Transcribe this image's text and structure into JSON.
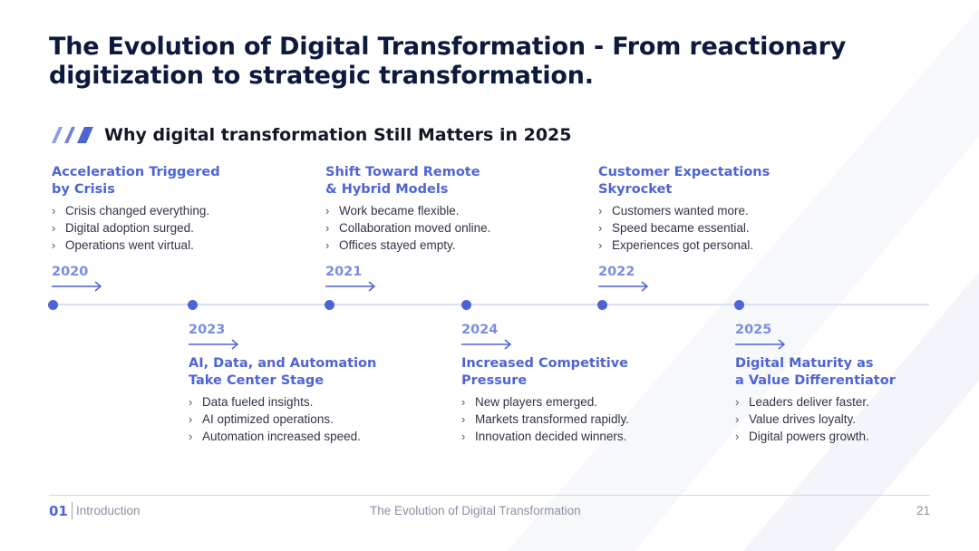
{
  "slide": {
    "title": "The Evolution of Digital Transformation - From reactionary digitization to strategic transformation.",
    "subtitle": "Why digital transformation Still Matters in 2025",
    "accent_color": "#4e64d6",
    "year_color": "#7b8ce4",
    "line_color": "#d9def6"
  },
  "milestones": [
    {
      "year": "2020",
      "heading_1": "Acceleration Triggered",
      "heading_2": "by Crisis",
      "items": [
        "Crisis changed everything.",
        "Digital adoption surged.",
        "Operations went virtual."
      ]
    },
    {
      "year": "2023",
      "heading_1": "AI, Data, and Automation",
      "heading_2": "Take Center Stage",
      "items": [
        "Data fueled insights.",
        "AI optimized operations.",
        "Automation increased speed."
      ]
    },
    {
      "year": "2021",
      "heading_1": "Shift Toward Remote",
      "heading_2": "& Hybrid Models",
      "items": [
        "Work became flexible.",
        "Collaboration moved online.",
        "Offices stayed empty."
      ]
    },
    {
      "year": "2024",
      "heading_1": "Increased Competitive",
      "heading_2": "Pressure",
      "items": [
        "New players emerged.",
        "Markets transformed rapidly.",
        "Innovation decided winners."
      ]
    },
    {
      "year": "2022",
      "heading_1": "Customer Expectations",
      "heading_2": "Skyrocket",
      "items": [
        "Customers wanted more.",
        "Speed became essential.",
        "Experiences got personal."
      ]
    },
    {
      "year": "2025",
      "heading_1": "Digital Maturity as",
      "heading_2": "a Value Differentiator",
      "items": [
        "Leaders deliver faster.",
        "Value drives loyalty.",
        "Digital powers growth."
      ]
    }
  ],
  "icons": {
    "bullet": "chevron-right-icon",
    "arrow": "arrow-right-icon",
    "subtitle_mark": "triple-slash-icon"
  },
  "footer": {
    "section_number": "01",
    "section_name": "Introduction",
    "center_text": "The Evolution of Digital Transformation",
    "page_number": "21"
  }
}
